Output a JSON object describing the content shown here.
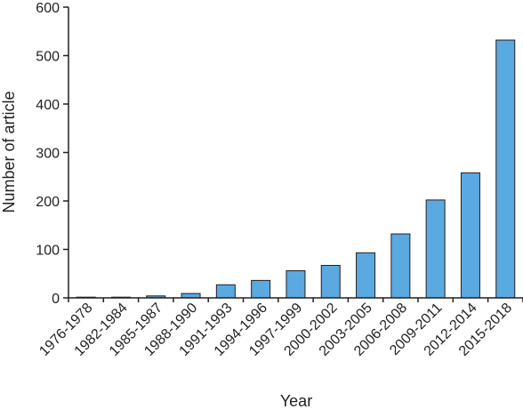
{
  "chart_data": {
    "type": "bar",
    "xlabel": "Year",
    "ylabel": "Number of article",
    "ylim": [
      0,
      600
    ],
    "yticks": [
      0,
      100,
      200,
      300,
      400,
      500,
      600
    ],
    "categories": [
      "1976-1978",
      "1982-1984",
      "1985-1987",
      "1988-1990",
      "1991-1993",
      "1994-1996",
      "1997-1999",
      "2000-2002",
      "2003-2005",
      "2006-2008",
      "2009-2011",
      "2012-2014",
      "2015-2018"
    ],
    "values": [
      0,
      1,
      4,
      9,
      27,
      36,
      56,
      67,
      93,
      132,
      202,
      258,
      532
    ],
    "grid": false,
    "legend": "none",
    "colors": {
      "bar_fill": "#5aa9e0",
      "bar_stroke": "#231f20",
      "axis": "#231f20",
      "text": "#231f20"
    }
  }
}
